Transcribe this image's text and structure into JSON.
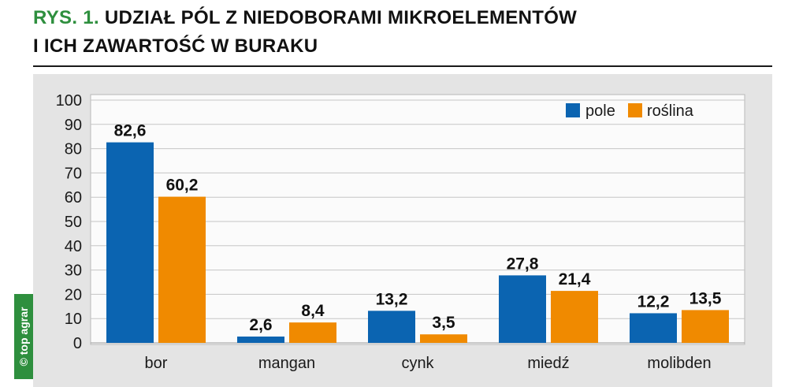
{
  "header": {
    "figure_label": "RYS. 1."
  },
  "badge": {
    "text": "© top agrar"
  },
  "colors": {
    "accent": "#2e8f3e",
    "panel_background": "#e4e4e4"
  },
  "chart_data": {
    "type": "bar",
    "title": [
      "UDZIAŁ PÓL Z NIEDOBORAMI MIKROELEMENTÓW",
      "I ICH ZAWARTOŚĆ W BURAKU"
    ],
    "categories": [
      "bor",
      "mangan",
      "cynk",
      "miedź",
      "molibden"
    ],
    "series": [
      {
        "name": "pole",
        "color": "#0b64b1",
        "values": [
          82.6,
          2.6,
          13.2,
          27.8,
          12.2
        ],
        "labels": [
          "82,6",
          "2,6",
          "13,2",
          "27,8",
          "12,2"
        ]
      },
      {
        "name": "roślina",
        "color": "#f08a00",
        "values": [
          60.2,
          8.4,
          3.5,
          21.4,
          13.5
        ],
        "labels": [
          "60,2",
          "8,4",
          "3,5",
          "21,4",
          "13,5"
        ]
      }
    ],
    "yticks": [
      0,
      10,
      20,
      30,
      40,
      50,
      60,
      70,
      80,
      90,
      100
    ],
    "ylim": [
      0,
      100
    ],
    "grid": true,
    "legend": "top-right"
  }
}
